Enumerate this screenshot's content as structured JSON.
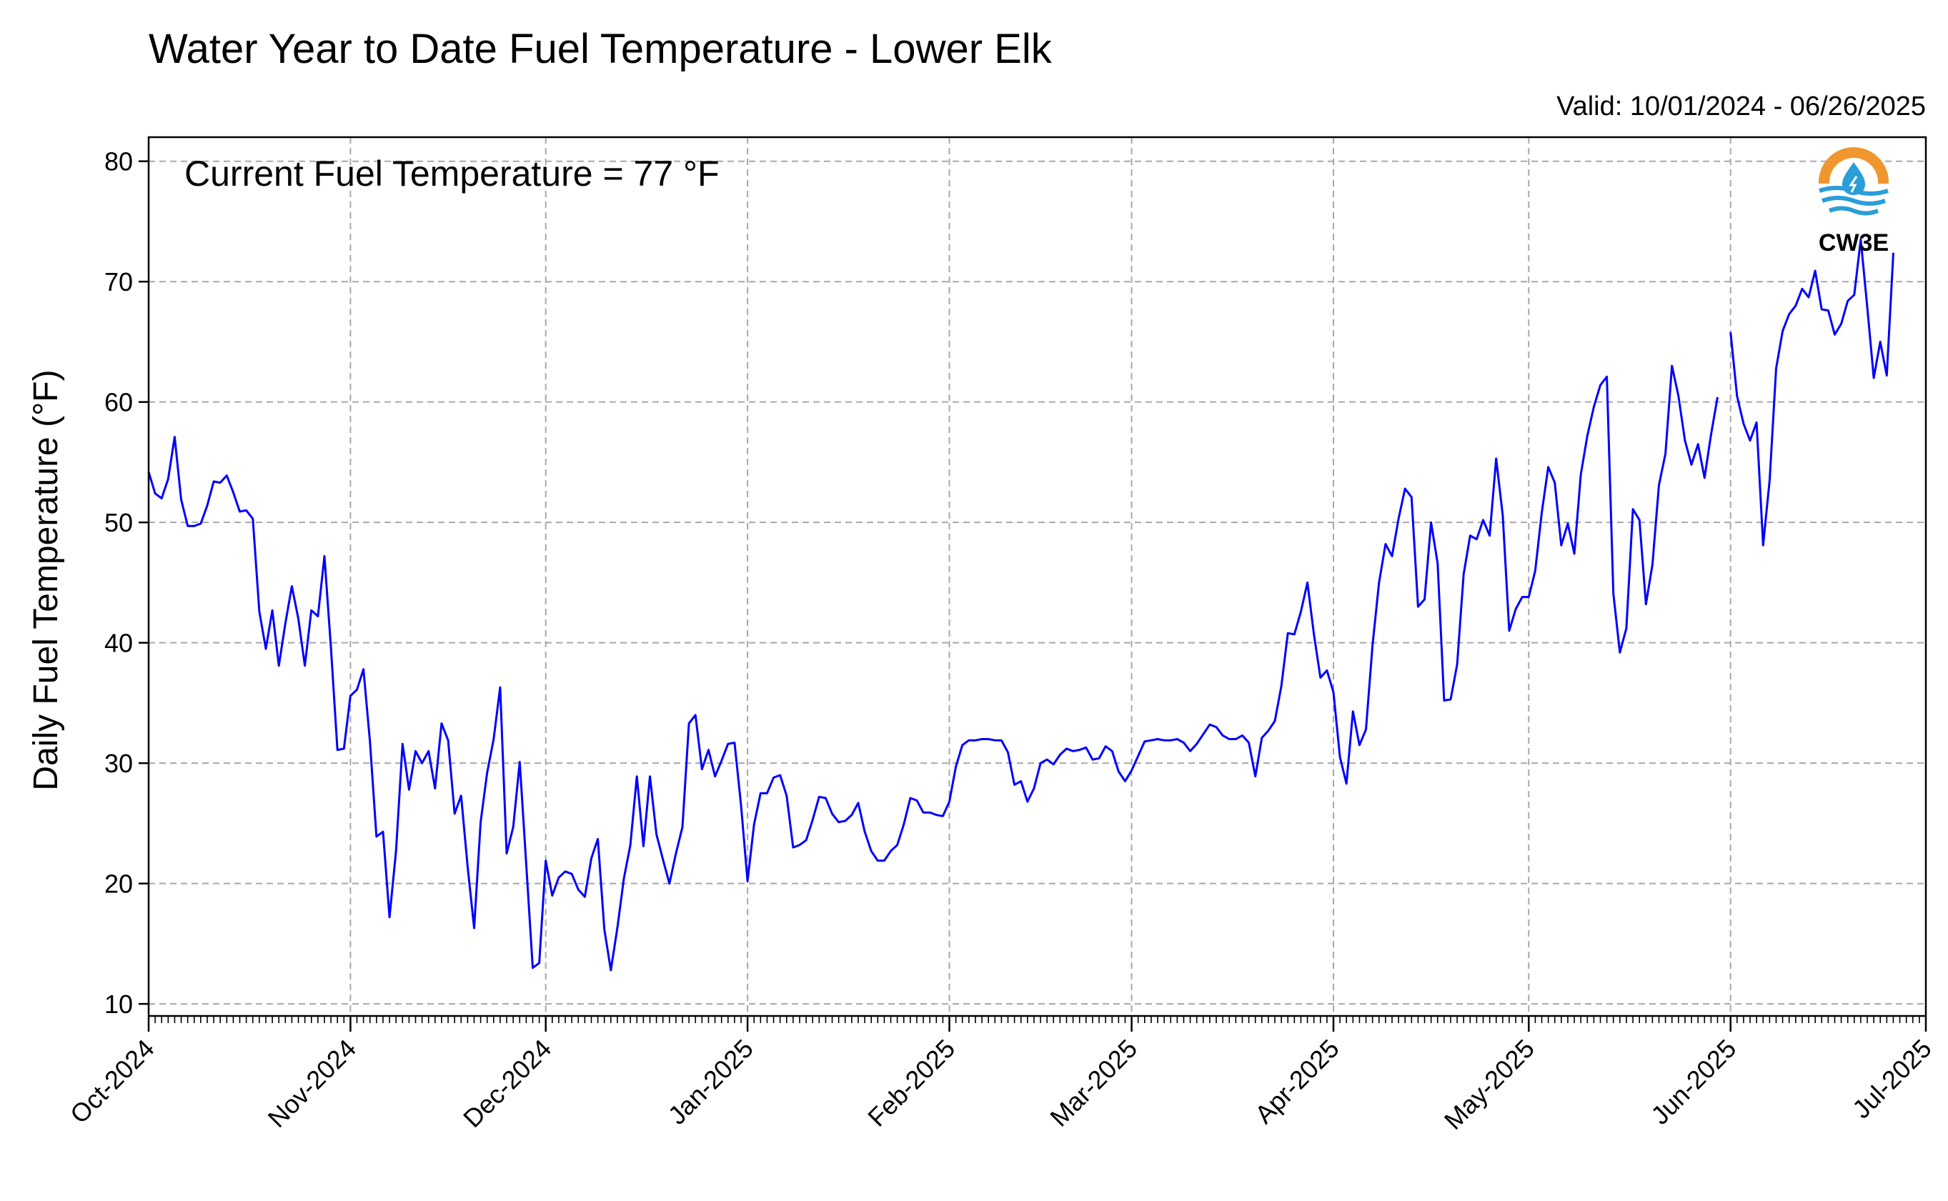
{
  "chart_data": {
    "type": "line",
    "title": "Water Year to Date Fuel Temperature - Lower Elk",
    "subtitle": "Valid: 10/01/2024 - 06/26/2025",
    "annotation": "Current Fuel Temperature = 77 °F",
    "ylabel": "Daily Fuel Temperature (°F)",
    "xlabel": "",
    "ylim": [
      9,
      82
    ],
    "xlim": [
      "2024-10-01",
      "2025-07-01"
    ],
    "y_ticks": [
      10,
      20,
      30,
      40,
      50,
      60,
      70,
      80
    ],
    "x_ticks": [
      {
        "date": "2024-10-01",
        "label": "Oct-2024"
      },
      {
        "date": "2024-11-01",
        "label": "Nov-2024"
      },
      {
        "date": "2024-12-01",
        "label": "Dec-2024"
      },
      {
        "date": "2025-01-01",
        "label": "Jan-2025"
      },
      {
        "date": "2025-02-01",
        "label": "Feb-2025"
      },
      {
        "date": "2025-03-01",
        "label": "Mar-2025"
      },
      {
        "date": "2025-04-01",
        "label": "Apr-2025"
      },
      {
        "date": "2025-05-01",
        "label": "May-2025"
      },
      {
        "date": "2025-06-01",
        "label": "Jun-2025"
      },
      {
        "date": "2025-07-01",
        "label": "Jul-2025"
      }
    ],
    "grid": true,
    "series": [
      {
        "color": "#0000ff",
        "start_date": "2024-10-01",
        "values": [
          54.2,
          52.4,
          52.0,
          53.6,
          57.1,
          51.9,
          49.7,
          49.7,
          49.9,
          51.4,
          53.4,
          53.3,
          53.9,
          52.5,
          50.9,
          51.0,
          50.3,
          42.6,
          39.5,
          42.7,
          38.1,
          41.6,
          44.7,
          42.0,
          38.1,
          42.7,
          42.2,
          47.2,
          39.6,
          31.1,
          31.2,
          35.6,
          36.1,
          37.8,
          31.8,
          23.9,
          24.3,
          17.2,
          22.7,
          31.6,
          27.8,
          31.0,
          30.0,
          31.0,
          27.9,
          33.3,
          31.9,
          25.8,
          27.3,
          21.4,
          16.3,
          25.1,
          29.2,
          32.0,
          36.3,
          22.5,
          24.7,
          30.1,
          21.6,
          13.0,
          13.4,
          21.9,
          19.0,
          20.5,
          21.0,
          20.8,
          19.5,
          18.9,
          22.1,
          23.7,
          16.2,
          12.8,
          16.3,
          20.4,
          23.2,
          28.9,
          23.1,
          28.9,
          24.1,
          22.0,
          20.0,
          22.5,
          24.7,
          33.3,
          34.0,
          29.5,
          31.1,
          28.9,
          30.2,
          31.6,
          31.7,
          26.5,
          20.2,
          24.9,
          27.5,
          27.5,
          28.8,
          29.0,
          27.3,
          23.0,
          23.2,
          23.6,
          25.3,
          27.2,
          27.1,
          25.8,
          25.1,
          25.2,
          25.7,
          26.7,
          24.3,
          22.7,
          21.9,
          21.9,
          22.7,
          23.2,
          24.9,
          27.1,
          26.9,
          25.9,
          25.9,
          25.7,
          25.6,
          26.8,
          29.7,
          31.5,
          31.9,
          31.9,
          32.0,
          32.0,
          31.9,
          31.9,
          30.9,
          28.2,
          28.5,
          26.8,
          27.9,
          30.0,
          30.3,
          29.9,
          30.7,
          31.2,
          31.0,
          31.1,
          31.3,
          30.3,
          30.4,
          31.4,
          31.0,
          29.3,
          28.5,
          29.4,
          30.6,
          31.8,
          31.9,
          32.0,
          31.9,
          31.9,
          32.0,
          31.7,
          31.0,
          31.6,
          32.4,
          33.2,
          33.0,
          32.3,
          32.0,
          32.0,
          32.3,
          31.7,
          28.9,
          32.1,
          32.7,
          33.5,
          36.4,
          40.8,
          40.7,
          42.6,
          45.0,
          40.7,
          37.1,
          37.7,
          35.9,
          30.5,
          28.3,
          34.3,
          31.5,
          32.8,
          39.8,
          45.0,
          48.2,
          47.2,
          50.3,
          52.8,
          52.1,
          43.0,
          43.6,
          50.0,
          46.6,
          35.2,
          35.3,
          38.2,
          45.7,
          48.9,
          48.6,
          50.2,
          48.9,
          55.3,
          50.6,
          41.0,
          42.8,
          43.8,
          43.8,
          46.0,
          50.8,
          54.6,
          53.3,
          48.1,
          49.9,
          47.4,
          54.0,
          57.2,
          59.6,
          61.4,
          62.1,
          44.1,
          39.2,
          41.2,
          51.1,
          50.2,
          43.2,
          46.5,
          53.1,
          55.7,
          63.0,
          60.5,
          56.8,
          54.8,
          56.5,
          53.7,
          57.3,
          60.4,
          null,
          65.8,
          60.5,
          58.2,
          56.8,
          58.3,
          48.1,
          53.5,
          62.8,
          65.9,
          67.3,
          68.0,
          69.4,
          68.7,
          70.9,
          67.7,
          67.6,
          65.6,
          66.5,
          68.4,
          68.9,
          73.5,
          67.9,
          62.0,
          65.0,
          62.2,
          72.4
        ]
      }
    ]
  },
  "logo": {
    "label": "CW3E"
  },
  "colors": {
    "line": "#0000ff",
    "logo_orange": "#f0962e",
    "logo_blue": "#2a9ed8"
  }
}
